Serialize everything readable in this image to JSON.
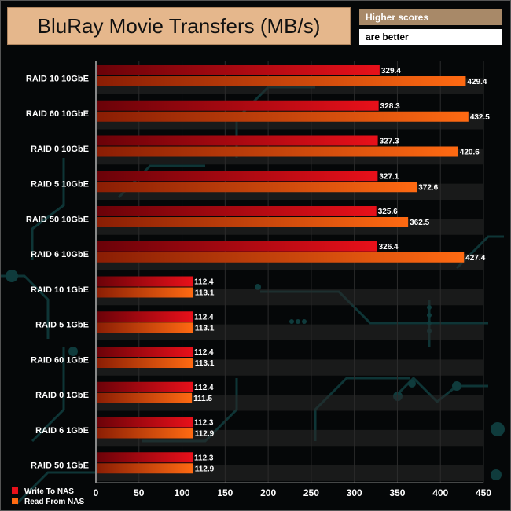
{
  "header": {
    "title": "BluRay Movie Transfers (MB/s)",
    "note_line1": "Higher scores",
    "note_line2": "are better"
  },
  "colors": {
    "write": "#e8101a",
    "read": "#ff6a12",
    "title_bg": "#e5b78c",
    "note_bg": "#a88968"
  },
  "chart_data": {
    "type": "bar",
    "orientation": "horizontal",
    "categories": [
      "RAID 10 10GbE",
      "RAID 60 10GbE",
      "RAID 0 10GbE",
      "RAID 5 10GbE",
      "RAID 50 10GbE",
      "RAID 6 10GbE",
      "RAID 10 1GbE",
      "RAID 5 1GbE",
      "RAID 60 1GbE",
      "RAID 0 1GbE",
      "RAID 6 1GbE",
      "RAID 50 1GbE"
    ],
    "series": [
      {
        "name": "Write To NAS",
        "values": [
          329.4,
          328.3,
          327.3,
          327.1,
          325.6,
          326.4,
          112.4,
          112.4,
          112.4,
          112.4,
          112.3,
          112.3
        ]
      },
      {
        "name": "Read From NAS",
        "values": [
          429.4,
          432.5,
          420.6,
          372.6,
          362.5,
          427.4,
          113.1,
          113.1,
          113.1,
          111.5,
          112.9,
          112.9
        ]
      }
    ],
    "value_labels": {
      "write": [
        "329.4",
        "328.3",
        "327.3",
        "327.1",
        "325.6",
        "326.4",
        "112.4",
        "112.4",
        "112.4",
        "112.4",
        "112.3",
        "112.3"
      ],
      "read": [
        "429.4",
        "432.5",
        "420.6",
        "372.6",
        "362.5",
        "427.4",
        "113.1",
        "113.1",
        "113.1",
        "111.5",
        "112.9",
        "112.9"
      ]
    },
    "x_ticks": [
      "0",
      "50",
      "100",
      "150",
      "200",
      "250",
      "300",
      "350",
      "400",
      "450"
    ],
    "xlim": [
      0,
      450
    ],
    "title": "BluRay Movie Transfers (MB/s)",
    "xlabel": "",
    "ylabel": "",
    "legend_position": "bottom-left"
  }
}
